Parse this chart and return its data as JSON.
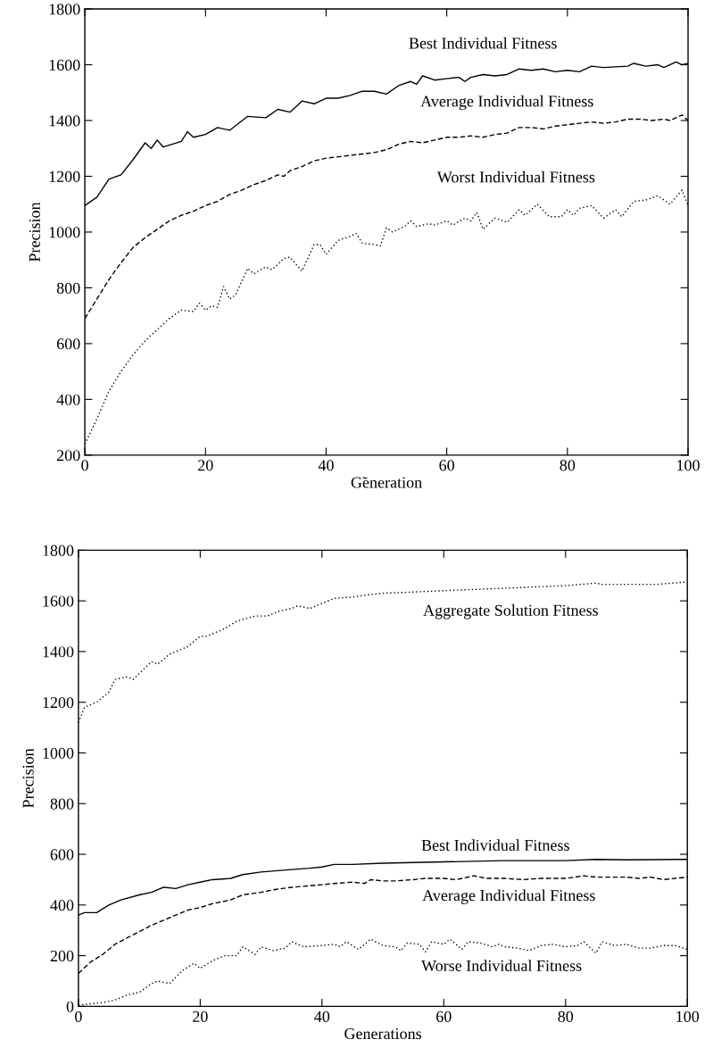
{
  "chart_data": [
    {
      "type": "line",
      "xlabel": "G̃eneration",
      "ylabel": "Precision",
      "xlim": [
        0,
        100
      ],
      "ylim": [
        200,
        1800
      ],
      "xticks": [
        0,
        20,
        40,
        60,
        80,
        100
      ],
      "yticks": [
        200,
        400,
        600,
        800,
        1000,
        1200,
        1400,
        1600,
        1800
      ],
      "grid": false,
      "legend": false,
      "series": [
        {
          "name": "Best Individual Fitness",
          "color": "#000000",
          "line_style": "solid",
          "x": [
            0,
            2,
            4,
            6,
            8,
            10,
            11,
            12,
            13,
            16,
            17,
            18,
            20,
            22,
            24,
            27,
            30,
            32,
            34,
            36,
            38,
            40,
            42,
            44,
            46,
            48,
            50,
            52,
            54,
            55,
            56,
            58,
            60,
            62,
            63,
            64,
            66,
            68,
            70,
            72,
            74,
            76,
            78,
            80,
            82,
            84,
            86,
            90,
            91,
            93,
            95,
            96,
            98,
            99,
            100
          ],
          "values": [
            1095,
            1125,
            1190,
            1205,
            1260,
            1320,
            1300,
            1330,
            1305,
            1325,
            1360,
            1340,
            1350,
            1375,
            1365,
            1415,
            1410,
            1440,
            1430,
            1470,
            1460,
            1480,
            1480,
            1490,
            1505,
            1505,
            1495,
            1525,
            1540,
            1530,
            1560,
            1545,
            1550,
            1555,
            1540,
            1555,
            1565,
            1560,
            1565,
            1585,
            1580,
            1585,
            1575,
            1580,
            1575,
            1595,
            1590,
            1595,
            1605,
            1595,
            1600,
            1590,
            1610,
            1600,
            1605
          ]
        },
        {
          "name": "Average Individual Fitness",
          "color": "#000000",
          "line_style": "dashed",
          "x": [
            0,
            2,
            4,
            6,
            8,
            10,
            12,
            14,
            16,
            18,
            20,
            22,
            24,
            26,
            28,
            30,
            32,
            33,
            34,
            36,
            38,
            40,
            42,
            44,
            46,
            48,
            50,
            52,
            54,
            56,
            58,
            60,
            62,
            64,
            66,
            68,
            70,
            72,
            74,
            76,
            78,
            80,
            82,
            84,
            86,
            88,
            90,
            92,
            94,
            96,
            97,
            99,
            100
          ],
          "values": [
            690,
            760,
            830,
            890,
            945,
            980,
            1010,
            1040,
            1060,
            1075,
            1095,
            1110,
            1135,
            1150,
            1170,
            1185,
            1205,
            1200,
            1220,
            1235,
            1255,
            1265,
            1270,
            1275,
            1280,
            1285,
            1295,
            1315,
            1325,
            1320,
            1330,
            1340,
            1340,
            1345,
            1340,
            1350,
            1355,
            1375,
            1375,
            1370,
            1380,
            1385,
            1390,
            1395,
            1390,
            1395,
            1405,
            1405,
            1400,
            1405,
            1400,
            1420,
            1400
          ]
        },
        {
          "name": "Worst Individual Fitness",
          "color": "#000000",
          "line_style": "dotted",
          "x": [
            0,
            2,
            4,
            6,
            8,
            10,
            12,
            14,
            16,
            18,
            19,
            20,
            21,
            22,
            23,
            24,
            25,
            27,
            28,
            30,
            31,
            33,
            34,
            36,
            38,
            39,
            40,
            42,
            44,
            45,
            46,
            48,
            49,
            50,
            51,
            53,
            54,
            55,
            57,
            58,
            60,
            61,
            63,
            64,
            65,
            66,
            68,
            70,
            72,
            73,
            75,
            77,
            79,
            80,
            81,
            82,
            84,
            86,
            88,
            89,
            91,
            93,
            95,
            97,
            99,
            100
          ],
          "values": [
            240,
            330,
            430,
            500,
            560,
            610,
            650,
            690,
            720,
            715,
            745,
            720,
            735,
            730,
            805,
            760,
            775,
            870,
            850,
            875,
            865,
            905,
            910,
            860,
            955,
            955,
            920,
            970,
            985,
            995,
            960,
            955,
            950,
            1015,
            1000,
            1020,
            1040,
            1020,
            1030,
            1025,
            1040,
            1025,
            1050,
            1040,
            1070,
            1010,
            1050,
            1035,
            1080,
            1060,
            1100,
            1055,
            1055,
            1080,
            1060,
            1085,
            1095,
            1050,
            1080,
            1055,
            1110,
            1115,
            1130,
            1100,
            1150,
            1095
          ]
        }
      ]
    },
    {
      "type": "line",
      "xlabel": "Generations",
      "ylabel": "Precision",
      "xlim": [
        0,
        100
      ],
      "ylim": [
        0,
        1800
      ],
      "xticks": [
        0,
        20,
        40,
        60,
        80,
        100
      ],
      "yticks": [
        0,
        200,
        400,
        600,
        800,
        1000,
        1200,
        1400,
        1600,
        1800
      ],
      "grid": false,
      "legend": false,
      "series": [
        {
          "name": "Aggregate Solution Fitness",
          "color": "#000000",
          "line_style": "dotted",
          "x": [
            0,
            1,
            3,
            5,
            6,
            8,
            9,
            12,
            13,
            15,
            18,
            20,
            21,
            22,
            24,
            26,
            29,
            31,
            33,
            35,
            36,
            38,
            40,
            42,
            45,
            48,
            50,
            55,
            60,
            65,
            70,
            75,
            80,
            85,
            86,
            90,
            95,
            100
          ],
          "values": [
            1120,
            1180,
            1200,
            1240,
            1290,
            1300,
            1290,
            1360,
            1350,
            1390,
            1420,
            1460,
            1460,
            1470,
            1490,
            1520,
            1540,
            1540,
            1560,
            1570,
            1580,
            1570,
            1590,
            1610,
            1615,
            1625,
            1630,
            1635,
            1640,
            1645,
            1650,
            1655,
            1660,
            1670,
            1665,
            1665,
            1665,
            1675
          ]
        },
        {
          "name": "Best Individual Fitness",
          "color": "#000000",
          "line_style": "solid",
          "x": [
            0,
            1,
            3,
            5,
            7,
            10,
            12,
            14,
            16,
            18,
            20,
            22,
            25,
            27,
            30,
            35,
            38,
            40,
            42,
            45,
            50,
            60,
            70,
            80,
            85,
            90,
            100
          ],
          "values": [
            360,
            370,
            370,
            400,
            420,
            440,
            450,
            470,
            465,
            480,
            490,
            500,
            505,
            520,
            530,
            540,
            545,
            550,
            560,
            560,
            565,
            570,
            575,
            575,
            580,
            578,
            580
          ]
        },
        {
          "name": "Average Individual Fitness",
          "color": "#000000",
          "line_style": "dashed",
          "x": [
            0,
            2,
            4,
            6,
            8,
            10,
            12,
            14,
            16,
            18,
            20,
            22,
            25,
            27,
            30,
            32,
            35,
            40,
            42,
            45,
            47,
            48,
            50,
            52,
            55,
            57,
            60,
            62,
            65,
            67,
            70,
            73,
            76,
            80,
            83,
            85,
            90,
            92,
            94,
            96,
            98,
            100
          ],
          "values": [
            130,
            175,
            205,
            245,
            270,
            295,
            320,
            340,
            360,
            380,
            390,
            405,
            420,
            440,
            450,
            460,
            470,
            480,
            485,
            490,
            485,
            500,
            495,
            495,
            500,
            505,
            505,
            500,
            515,
            505,
            505,
            500,
            505,
            505,
            515,
            510,
            510,
            505,
            510,
            500,
            505,
            510
          ]
        },
        {
          "name": "Worse Individual Fitness",
          "color": "#000000",
          "line_style": "dotted",
          "x": [
            0,
            2,
            4,
            6,
            8,
            10,
            12,
            13,
            15,
            17,
            19,
            20,
            22,
            24,
            26,
            27,
            29,
            30,
            32,
            34,
            35,
            37,
            40,
            42,
            43,
            44,
            46,
            48,
            50,
            52,
            53,
            54,
            56,
            57,
            58,
            60,
            61,
            63,
            64,
            66,
            68,
            69,
            70,
            72,
            74,
            76,
            78,
            80,
            82,
            83,
            85,
            86,
            88,
            90,
            92,
            94,
            96,
            98,
            100
          ],
          "values": [
            5,
            10,
            15,
            25,
            45,
            55,
            90,
            100,
            90,
            140,
            170,
            150,
            180,
            200,
            200,
            235,
            205,
            235,
            220,
            230,
            255,
            235,
            240,
            245,
            235,
            255,
            225,
            265,
            240,
            235,
            220,
            250,
            245,
            215,
            255,
            245,
            265,
            225,
            255,
            250,
            235,
            245,
            235,
            230,
            220,
            240,
            245,
            235,
            240,
            255,
            210,
            255,
            240,
            245,
            230,
            230,
            240,
            240,
            225
          ]
        }
      ]
    }
  ]
}
